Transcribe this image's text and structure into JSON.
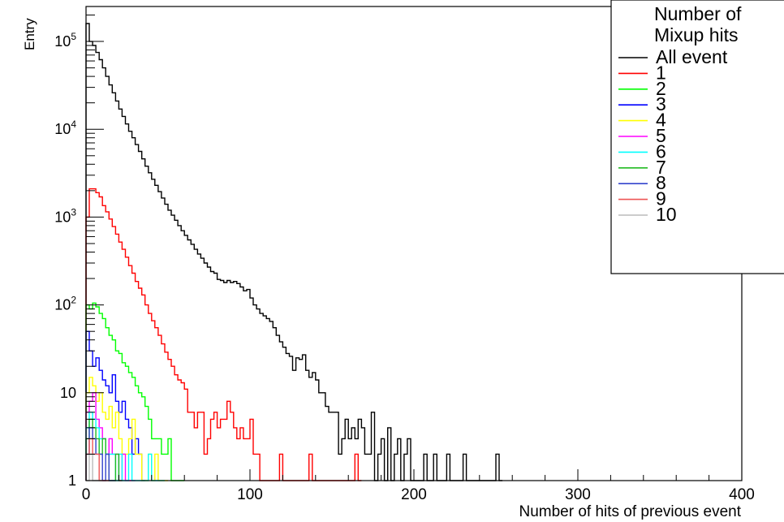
{
  "chart_data": {
    "type": "line",
    "subtype": "step-histogram",
    "xlabel": "Number of hits of previous event",
    "ylabel": "Entry",
    "xlim": [
      0,
      400
    ],
    "ylim": [
      1,
      250000
    ],
    "yscale": "log",
    "grid": false,
    "legend_position": "top-right",
    "legend_title": [
      "Number of",
      "Mixup hits"
    ],
    "x_ticks": [
      0,
      100,
      200,
      300,
      400
    ],
    "x_tick_labels": [
      "0",
      "100",
      "200",
      "300",
      "400"
    ],
    "y_tick_labels": [
      {
        "value": 1,
        "base": "1",
        "exp": ""
      },
      {
        "value": 10,
        "base": "10",
        "exp": ""
      },
      {
        "value": 100,
        "base": "10",
        "exp": "2"
      },
      {
        "value": 1000,
        "base": "10",
        "exp": "3"
      },
      {
        "value": 10000,
        "base": "10",
        "exp": "4"
      },
      {
        "value": 100000,
        "base": "10",
        "exp": "5"
      }
    ],
    "bin_width": 2,
    "series": [
      {
        "name": "All event",
        "color": "#000000",
        "x": [
          0,
          2,
          4,
          6,
          8,
          10,
          12,
          14,
          16,
          18,
          20,
          22,
          24,
          26,
          28,
          30,
          32,
          34,
          36,
          38,
          40,
          42,
          44,
          46,
          48,
          50,
          52,
          54,
          56,
          58,
          60,
          62,
          64,
          66,
          68,
          70,
          72,
          74,
          76,
          78,
          80,
          82,
          84,
          86,
          88,
          90,
          92,
          94,
          96,
          98,
          100,
          102,
          104,
          106,
          108,
          110,
          112,
          114,
          116,
          118,
          120,
          122,
          124,
          126,
          128,
          130,
          132,
          134,
          136,
          138,
          140,
          142,
          144,
          146,
          148,
          150,
          152,
          154,
          156,
          158,
          160,
          162,
          164,
          166,
          168,
          170,
          172,
          174,
          176,
          178,
          180,
          182,
          184,
          186,
          188,
          190,
          192,
          194,
          196,
          198,
          200,
          202,
          204,
          206,
          208,
          210,
          212,
          214,
          216,
          218,
          220,
          222,
          224,
          226,
          228,
          230,
          232,
          234,
          236,
          238,
          240,
          242,
          244,
          246,
          248,
          250,
          252
        ],
        "values": [
          160000,
          100000,
          90000,
          75000,
          62000,
          50000,
          40000,
          32000,
          26000,
          21000,
          17000,
          14000,
          11500,
          9500,
          8000,
          6700,
          5600,
          4600,
          3800,
          3200,
          2700,
          2300,
          1950,
          1650,
          1400,
          1200,
          1050,
          920,
          800,
          700,
          620,
          550,
          490,
          430,
          380,
          340,
          300,
          270,
          240,
          230,
          195,
          190,
          180,
          190,
          180,
          185,
          175,
          160,
          145,
          150,
          120,
          100,
          90,
          80,
          75,
          70,
          65,
          55,
          45,
          38,
          33,
          28,
          26,
          18,
          25,
          24,
          27,
          18,
          15,
          17,
          14,
          10,
          10,
          7,
          6,
          6,
          6,
          2,
          3,
          5,
          3,
          4,
          3,
          5,
          4,
          2,
          2,
          6,
          1,
          2,
          3,
          1,
          4,
          1,
          2,
          3,
          1,
          2,
          3,
          1,
          1,
          1,
          1,
          2,
          1,
          1,
          2,
          1,
          1,
          1,
          2,
          1,
          1,
          1,
          1,
          2,
          1,
          1,
          1,
          1,
          1,
          1,
          1,
          1,
          1,
          2,
          1
        ]
      },
      {
        "name": "1",
        "color": "#ff0000",
        "x": [
          0,
          2,
          4,
          6,
          8,
          10,
          12,
          14,
          16,
          18,
          20,
          22,
          24,
          26,
          28,
          30,
          32,
          34,
          36,
          38,
          40,
          42,
          44,
          46,
          48,
          50,
          52,
          54,
          56,
          58,
          60,
          62,
          64,
          66,
          68,
          70,
          72,
          74,
          76,
          78,
          80,
          82,
          84,
          86,
          88,
          90,
          92,
          94,
          96,
          98,
          100,
          102,
          104,
          106,
          108,
          110,
          112,
          114,
          116,
          118,
          120,
          122,
          124,
          126,
          128,
          130,
          132,
          134,
          136,
          138,
          140,
          142,
          144,
          146,
          148,
          150,
          152,
          154,
          156,
          158,
          160,
          162,
          164,
          166
        ],
        "values": [
          1000,
          2100,
          2100,
          1900,
          1700,
          1350,
          1150,
          950,
          780,
          640,
          520,
          430,
          350,
          280,
          230,
          185,
          155,
          130,
          100,
          80,
          66,
          55,
          45,
          36,
          29,
          24,
          20,
          16,
          14,
          13,
          11,
          6,
          6,
          4,
          6,
          6,
          2,
          3,
          5,
          6,
          4,
          5,
          5,
          8,
          6,
          4,
          3,
          4,
          3,
          3,
          5,
          2,
          2,
          1,
          1,
          1,
          1,
          1,
          1,
          2,
          1,
          1,
          1,
          1,
          1,
          1,
          1,
          1,
          2,
          1,
          1,
          1,
          1,
          1,
          1,
          1,
          1,
          1,
          1,
          1,
          1,
          1,
          2,
          1
        ]
      },
      {
        "name": "2",
        "color": "#00ff00",
        "x": [
          0,
          2,
          4,
          6,
          8,
          10,
          12,
          14,
          16,
          18,
          20,
          22,
          24,
          26,
          28,
          30,
          32,
          34,
          36,
          38,
          40,
          42,
          44,
          46,
          48,
          50,
          52,
          54,
          56,
          58
        ],
        "values": [
          100,
          90,
          105,
          95,
          80,
          70,
          55,
          45,
          40,
          30,
          28,
          22,
          20,
          17,
          15,
          12,
          10,
          9,
          7,
          5,
          3,
          3,
          3,
          2,
          2,
          3,
          1,
          1,
          1,
          1
        ]
      },
      {
        "name": "3",
        "color": "#0000ff",
        "x": [
          0,
          2,
          4,
          6,
          8,
          10,
          12,
          14,
          16,
          18,
          20,
          22,
          24,
          26,
          28,
          30,
          32,
          34
        ],
        "values": [
          50,
          30,
          20,
          25,
          18,
          14,
          12,
          10,
          16,
          8,
          6,
          8,
          5,
          4,
          2,
          3,
          2,
          1
        ]
      },
      {
        "name": "4",
        "color": "#ffff00",
        "x": [
          0,
          2,
          4,
          6,
          8,
          10,
          12,
          14,
          16,
          18,
          20,
          22,
          24,
          26,
          28,
          30,
          32,
          34,
          36,
          38,
          40,
          42,
          44,
          46,
          48
        ],
        "values": [
          10,
          15,
          12,
          8,
          10,
          6,
          5,
          7,
          4,
          6,
          3,
          2,
          2,
          3,
          5,
          2,
          2,
          1,
          1,
          2,
          1,
          2,
          1,
          1,
          1
        ]
      },
      {
        "name": "5",
        "color": "#ff00ff",
        "x": [
          0,
          2,
          4,
          6,
          8,
          10,
          12,
          14,
          16,
          18,
          20,
          22,
          24,
          26,
          28
        ],
        "values": [
          6,
          8,
          10,
          5,
          4,
          3,
          2,
          3,
          2,
          2,
          1,
          2,
          1,
          1,
          1
        ]
      },
      {
        "name": "6",
        "color": "#00ffff",
        "x": [
          0,
          2,
          4,
          6,
          8,
          10,
          12,
          14,
          16,
          18,
          20,
          22,
          24,
          26,
          28,
          30,
          32,
          34,
          36,
          38,
          40,
          42,
          44,
          46
        ],
        "values": [
          4,
          6,
          5,
          4,
          3,
          3,
          2,
          2,
          2,
          1,
          2,
          1,
          1,
          2,
          1,
          1,
          1,
          1,
          1,
          2,
          1,
          1,
          1,
          1
        ]
      },
      {
        "name": "7",
        "color": "#22bb22",
        "x": [
          0,
          2,
          4,
          6,
          8,
          10,
          12,
          14,
          16,
          18,
          20
        ],
        "values": [
          3,
          5,
          4,
          3,
          2,
          3,
          2,
          1,
          1,
          2,
          1
        ]
      },
      {
        "name": "8",
        "color": "#3344cc",
        "x": [
          0,
          2,
          4,
          6,
          8,
          10,
          12,
          14,
          16
        ],
        "values": [
          2,
          4,
          3,
          2,
          2,
          1,
          2,
          1,
          1
        ]
      },
      {
        "name": "9",
        "color": "#ee5555",
        "x": [
          0,
          2,
          4,
          6,
          8,
          10,
          12
        ],
        "values": [
          2,
          3,
          2,
          2,
          1,
          1,
          1
        ]
      },
      {
        "name": "10",
        "color": "#bbbbbb",
        "x": [
          0,
          2,
          4,
          6,
          8
        ],
        "values": [
          1,
          2,
          1,
          1,
          1
        ]
      }
    ]
  }
}
